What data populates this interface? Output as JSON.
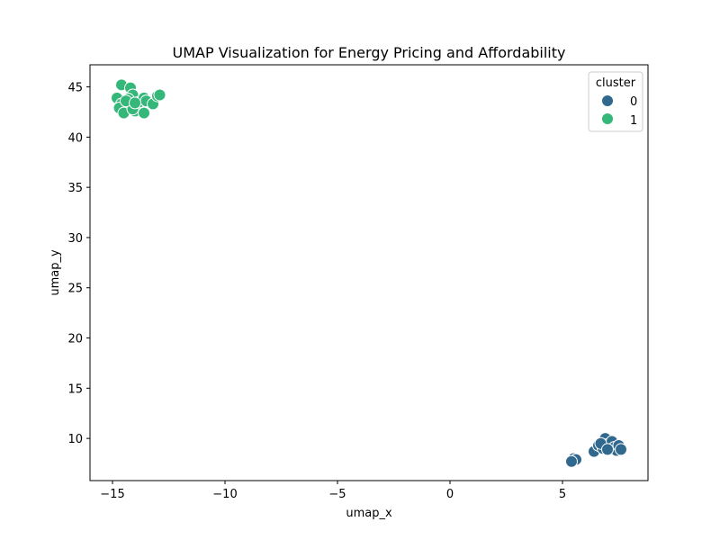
{
  "chart_data": {
    "type": "scatter",
    "title": "UMAP Visualization for Energy Pricing and Affordability",
    "xlabel": "umap_x",
    "ylabel": "umap_y",
    "xlim": [
      -16,
      8.8
    ],
    "ylim": [
      5.8,
      47.2
    ],
    "xticks": [
      -15,
      -10,
      -5,
      0,
      5
    ],
    "xtick_labels": [
      "−15",
      "−10",
      "−5",
      "0",
      "5"
    ],
    "yticks": [
      10,
      15,
      20,
      25,
      30,
      35,
      40,
      45
    ],
    "ytick_labels": [
      "10",
      "15",
      "20",
      "25",
      "30",
      "35",
      "40",
      "45"
    ],
    "grid": false,
    "legend": {
      "title": "cluster",
      "placement": "top-right"
    },
    "series": [
      {
        "name": "0",
        "color": "#31688e",
        "points": [
          [
            6.4,
            8.7
          ],
          [
            6.6,
            9.3
          ],
          [
            6.8,
            9.0
          ],
          [
            6.9,
            10.0
          ],
          [
            7.0,
            9.4
          ],
          [
            7.1,
            8.9
          ],
          [
            7.2,
            9.7
          ],
          [
            7.3,
            9.1
          ],
          [
            7.4,
            8.8
          ],
          [
            7.5,
            9.3
          ],
          [
            7.6,
            8.9
          ],
          [
            6.7,
            9.5
          ],
          [
            7.0,
            8.9
          ],
          [
            5.4,
            7.8
          ],
          [
            5.5,
            8.0
          ],
          [
            5.6,
            7.9
          ],
          [
            5.4,
            7.7
          ]
        ]
      },
      {
        "name": "1",
        "color": "#35b779",
        "points": [
          [
            -14.6,
            45.2
          ],
          [
            -14.2,
            44.9
          ],
          [
            -14.8,
            43.9
          ],
          [
            -14.1,
            44.2
          ],
          [
            -14.3,
            43.8
          ],
          [
            -14.6,
            43.3
          ],
          [
            -14.7,
            42.9
          ],
          [
            -14.2,
            43.1
          ],
          [
            -14.0,
            42.6
          ],
          [
            -13.8,
            43.5
          ],
          [
            -13.6,
            43.9
          ],
          [
            -13.5,
            43.6
          ],
          [
            -13.2,
            43.3
          ],
          [
            -13.0,
            44.1
          ],
          [
            -12.9,
            44.2
          ],
          [
            -14.5,
            42.4
          ],
          [
            -13.6,
            42.4
          ],
          [
            -14.1,
            42.8
          ],
          [
            -14.4,
            43.6
          ],
          [
            -14.0,
            43.4
          ]
        ]
      }
    ]
  }
}
